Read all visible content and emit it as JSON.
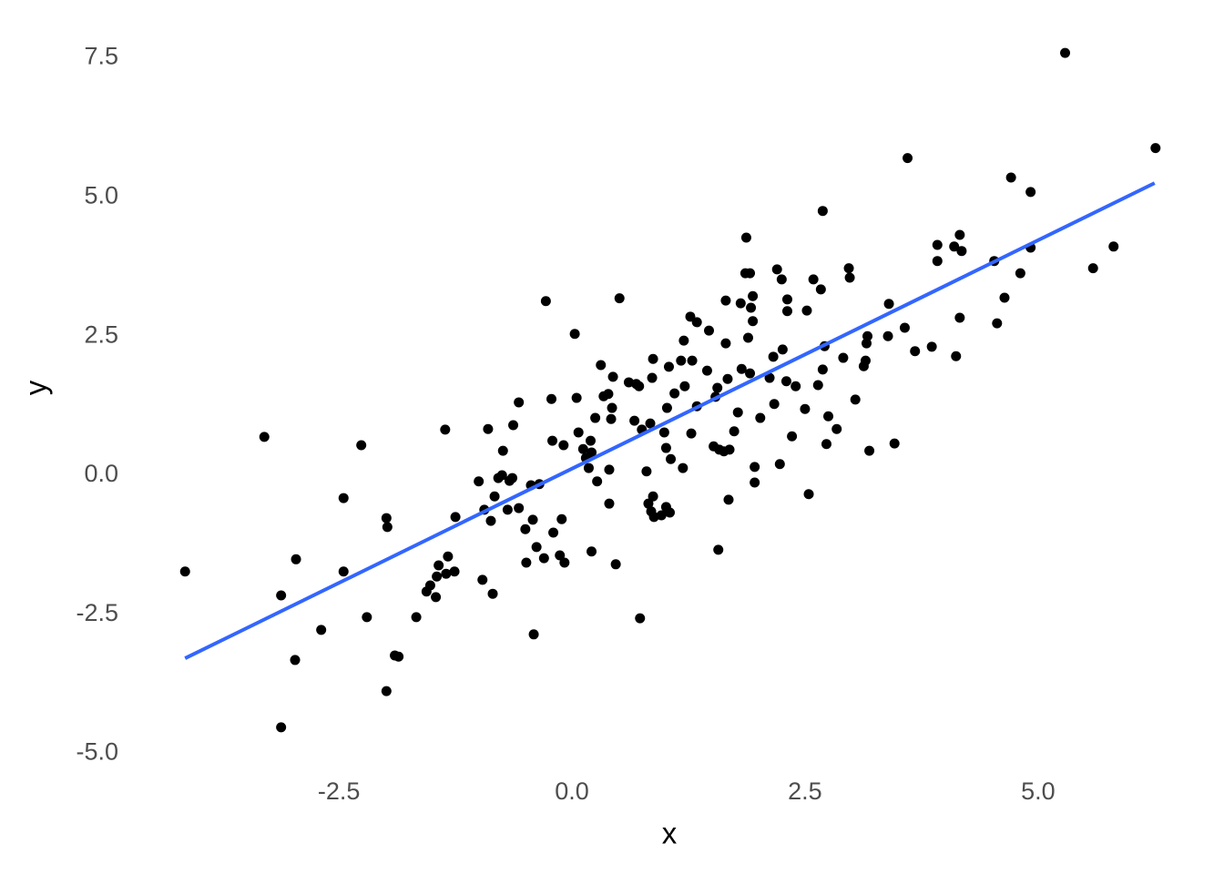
{
  "chart_data": {
    "type": "scatter",
    "x_label": "x",
    "y_label": "y",
    "xlim": [
      -4.67,
      6.76
    ],
    "ylim": [
      -5.53,
      8.05
    ],
    "xticks": [
      -2.5,
      {
        "value": 0,
        "label": "0.0"
      },
      2.5,
      {
        "value": 5,
        "label": "5.0"
      }
    ],
    "yticks": [
      {
        "value": -5,
        "label": "-5.0"
      },
      -2.5,
      {
        "value": 0,
        "label": "0.0"
      },
      2.5,
      {
        "value": 5,
        "label": "5.0"
      },
      7.5
    ],
    "grid": false,
    "series": [
      {
        "color": "#000000",
        "x": [
          -4.15,
          -3.3,
          -3.12,
          -3.12,
          -2.96,
          -2.97,
          -2.69,
          -2.45,
          -2.45,
          -2.26,
          -2.2,
          -1.99,
          -1.98,
          -1.99,
          -1.9,
          -1.86,
          -1.67,
          -1.56,
          -1.52,
          -1.46,
          -1.45,
          -1.43,
          -1.36,
          -1.35,
          -1.33,
          -1.26,
          -1.25,
          -1.0,
          -0.96,
          -0.94,
          -0.9,
          -0.87,
          -0.85,
          -0.83,
          -0.79,
          -0.75,
          -0.74,
          -0.69,
          -0.67,
          -0.64,
          -0.63,
          -0.57,
          -0.57,
          -0.5,
          -0.49,
          -0.44,
          -0.42,
          -0.41,
          -0.38,
          -0.35,
          -0.3,
          -0.28,
          -0.22,
          -0.21,
          -0.2,
          -0.13,
          -0.11,
          -0.09,
          -0.08,
          0.03,
          0.05,
          0.07,
          0.12,
          0.15,
          0.18,
          0.2,
          0.21,
          0.21,
          0.25,
          0.27,
          0.31,
          0.34,
          0.39,
          0.4,
          0.4,
          0.42,
          0.43,
          0.44,
          0.47,
          0.51,
          0.61,
          0.67,
          0.69,
          0.72,
          0.73,
          0.75,
          0.8,
          0.82,
          0.84,
          0.85,
          0.86,
          0.87,
          0.87,
          0.88,
          0.96,
          0.99,
          1.01,
          1.01,
          1.02,
          1.04,
          1.05,
          1.06,
          1.1,
          1.17,
          1.19,
          1.2,
          1.21,
          1.27,
          1.28,
          1.29,
          1.34,
          1.34,
          1.45,
          1.47,
          1.52,
          1.54,
          1.56,
          1.57,
          1.58,
          1.63,
          1.65,
          1.65,
          1.67,
          1.68,
          1.69,
          1.74,
          1.78,
          1.81,
          1.82,
          1.86,
          1.87,
          1.89,
          1.91,
          1.91,
          1.92,
          1.94,
          1.94,
          1.96,
          1.96,
          2.02,
          2.12,
          2.16,
          2.17,
          2.2,
          2.23,
          2.25,
          2.26,
          2.3,
          2.31,
          2.31,
          2.36,
          2.4,
          2.5,
          2.52,
          2.54,
          2.59,
          2.64,
          2.67,
          2.69,
          2.69,
          2.71,
          2.73,
          2.75,
          2.84,
          2.91,
          2.97,
          2.98,
          3.04,
          3.13,
          3.15,
          3.16,
          3.17,
          3.19,
          3.39,
          3.4,
          3.46,
          3.57,
          3.6,
          3.68,
          3.86,
          3.92,
          3.92,
          4.1,
          4.12,
          4.16,
          4.16,
          4.18,
          4.53,
          4.56,
          4.64,
          4.71,
          4.81,
          4.92,
          4.92,
          5.29,
          5.59,
          5.81,
          6.26
        ],
        "y": [
          -1.73,
          0.69,
          -2.16,
          -4.53,
          -1.51,
          -3.32,
          -2.78,
          -0.41,
          -1.73,
          0.54,
          -2.55,
          -0.77,
          -0.93,
          -3.88,
          -3.24,
          -3.26,
          -2.55,
          -2.09,
          -1.98,
          -2.19,
          -1.82,
          -1.62,
          0.82,
          -1.77,
          -1.46,
          -1.73,
          -0.75,
          -0.11,
          -1.88,
          -0.62,
          0.83,
          -0.82,
          -2.13,
          -0.38,
          -0.05,
          0.0,
          0.44,
          -0.62,
          -0.1,
          -0.05,
          0.9,
          -0.59,
          1.31,
          -0.97,
          -1.57,
          -0.18,
          -0.8,
          -2.86,
          -1.29,
          -0.16,
          -1.49,
          3.13,
          1.37,
          0.62,
          -1.03,
          -1.44,
          -0.79,
          0.54,
          -1.57,
          2.54,
          1.39,
          0.77,
          0.47,
          0.31,
          0.13,
          0.62,
          -1.37,
          0.41,
          1.03,
          -0.11,
          1.98,
          1.42,
          1.46,
          -0.51,
          0.1,
          1.01,
          1.21,
          1.77,
          -1.6,
          3.18,
          1.67,
          0.98,
          1.64,
          1.6,
          -2.57,
          0.82,
          0.07,
          -0.51,
          0.93,
          -0.65,
          1.75,
          2.09,
          -0.38,
          -0.75,
          -0.72,
          0.77,
          0.49,
          -0.57,
          1.21,
          1.95,
          -0.67,
          0.29,
          1.47,
          2.06,
          0.13,
          2.42,
          1.6,
          2.85,
          0.75,
          2.06,
          1.24,
          2.75,
          1.88,
          2.6,
          0.52,
          1.41,
          1.57,
          -1.34,
          0.46,
          0.43,
          3.14,
          2.37,
          1.73,
          -0.44,
          0.46,
          0.79,
          1.13,
          3.09,
          1.91,
          3.63,
          4.27,
          2.47,
          3.63,
          1.83,
          3.01,
          3.22,
          2.77,
          0.15,
          -0.13,
          1.03,
          1.75,
          2.13,
          1.28,
          3.7,
          0.2,
          3.52,
          2.26,
          1.69,
          3.16,
          2.95,
          0.7,
          1.6,
          1.19,
          2.96,
          -0.34,
          3.52,
          1.62,
          3.34,
          4.75,
          1.9,
          2.32,
          0.56,
          1.06,
          0.83,
          2.11,
          3.72,
          3.55,
          1.36,
          1.96,
          2.06,
          2.37,
          2.5,
          0.44,
          2.5,
          3.08,
          0.57,
          2.65,
          5.7,
          2.23,
          2.31,
          4.14,
          3.85,
          4.11,
          2.14,
          4.32,
          2.83,
          4.03,
          3.85,
          2.73,
          3.19,
          5.35,
          3.63,
          5.09,
          4.09,
          7.59,
          3.72,
          4.11,
          5.88
        ]
      }
    ],
    "fit_line": {
      "color": "#3366ff",
      "x": [
        -4.15,
        6.25
      ],
      "y": [
        -3.29,
        5.25
      ]
    }
  }
}
